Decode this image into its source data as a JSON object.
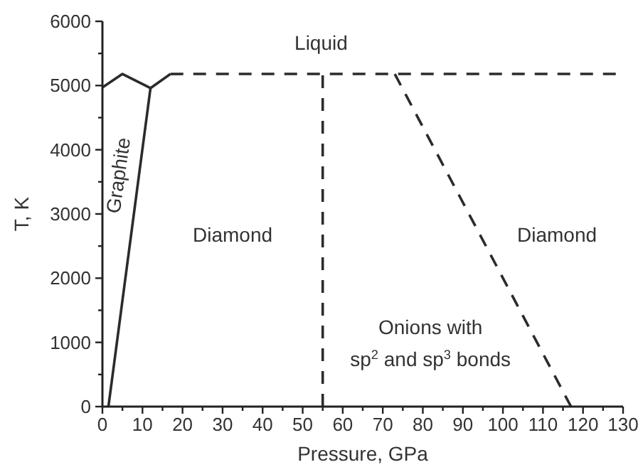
{
  "chart_data": {
    "type": "line",
    "xlabel": "Pressure, GPa",
    "ylabel": "T, K",
    "xlim": [
      0,
      130
    ],
    "ylim": [
      0,
      6000
    ],
    "xticks": [
      0,
      {
        "value": 5,
        "label": null
      },
      10,
      {
        "value": 15,
        "label": null
      },
      20,
      {
        "value": 25,
        "label": null
      },
      30,
      {
        "value": 35,
        "label": null
      },
      40,
      {
        "value": 45,
        "label": null
      },
      50,
      {
        "value": 55,
        "label": null
      },
      60,
      {
        "value": 65,
        "label": null
      },
      70,
      {
        "value": 75,
        "label": null
      },
      80,
      {
        "value": 85,
        "label": null
      },
      90,
      {
        "value": 95,
        "label": null
      },
      100,
      {
        "value": 105,
        "label": null
      },
      110,
      {
        "value": 115,
        "label": null
      },
      120,
      {
        "value": 125,
        "label": null
      },
      130
    ],
    "yticks": [
      0,
      {
        "value": 500,
        "label": null
      },
      1000,
      {
        "value": 1500,
        "label": null
      },
      2000,
      {
        "value": 2500,
        "label": null
      },
      3000,
      {
        "value": 3500,
        "label": null
      },
      4000,
      {
        "value": 4500,
        "label": null
      },
      5000,
      {
        "value": 5500,
        "label": null
      },
      6000
    ],
    "series": [
      {
        "color": "#2b2b2b",
        "line_style": "solid",
        "x": [
          1.5,
          12
        ],
        "values": [
          0,
          4960
        ]
      },
      {
        "color": "#2b2b2b",
        "line_style": "solid",
        "x": [
          0,
          5,
          12,
          17
        ],
        "values": [
          4970,
          5180,
          4960,
          5180
        ]
      },
      {
        "color": "#2b2b2b",
        "line_style": "dashed",
        "x": [
          17,
          130
        ],
        "values": [
          5180,
          5180
        ]
      },
      {
        "color": "#2b2b2b",
        "line_style": "dashed",
        "x": [
          55,
          55
        ],
        "values": [
          0,
          5180
        ]
      },
      {
        "color": "#2b2b2b",
        "line_style": "dashed",
        "x": [
          73,
          117
        ],
        "values": [
          5180,
          0
        ]
      }
    ],
    "annotations": [
      "Liquid",
      "Graphite",
      "Diamond",
      "Diamond",
      "Onions with",
      "sp$^{2}$ and sp$^{3}$ bonds"
    ]
  }
}
